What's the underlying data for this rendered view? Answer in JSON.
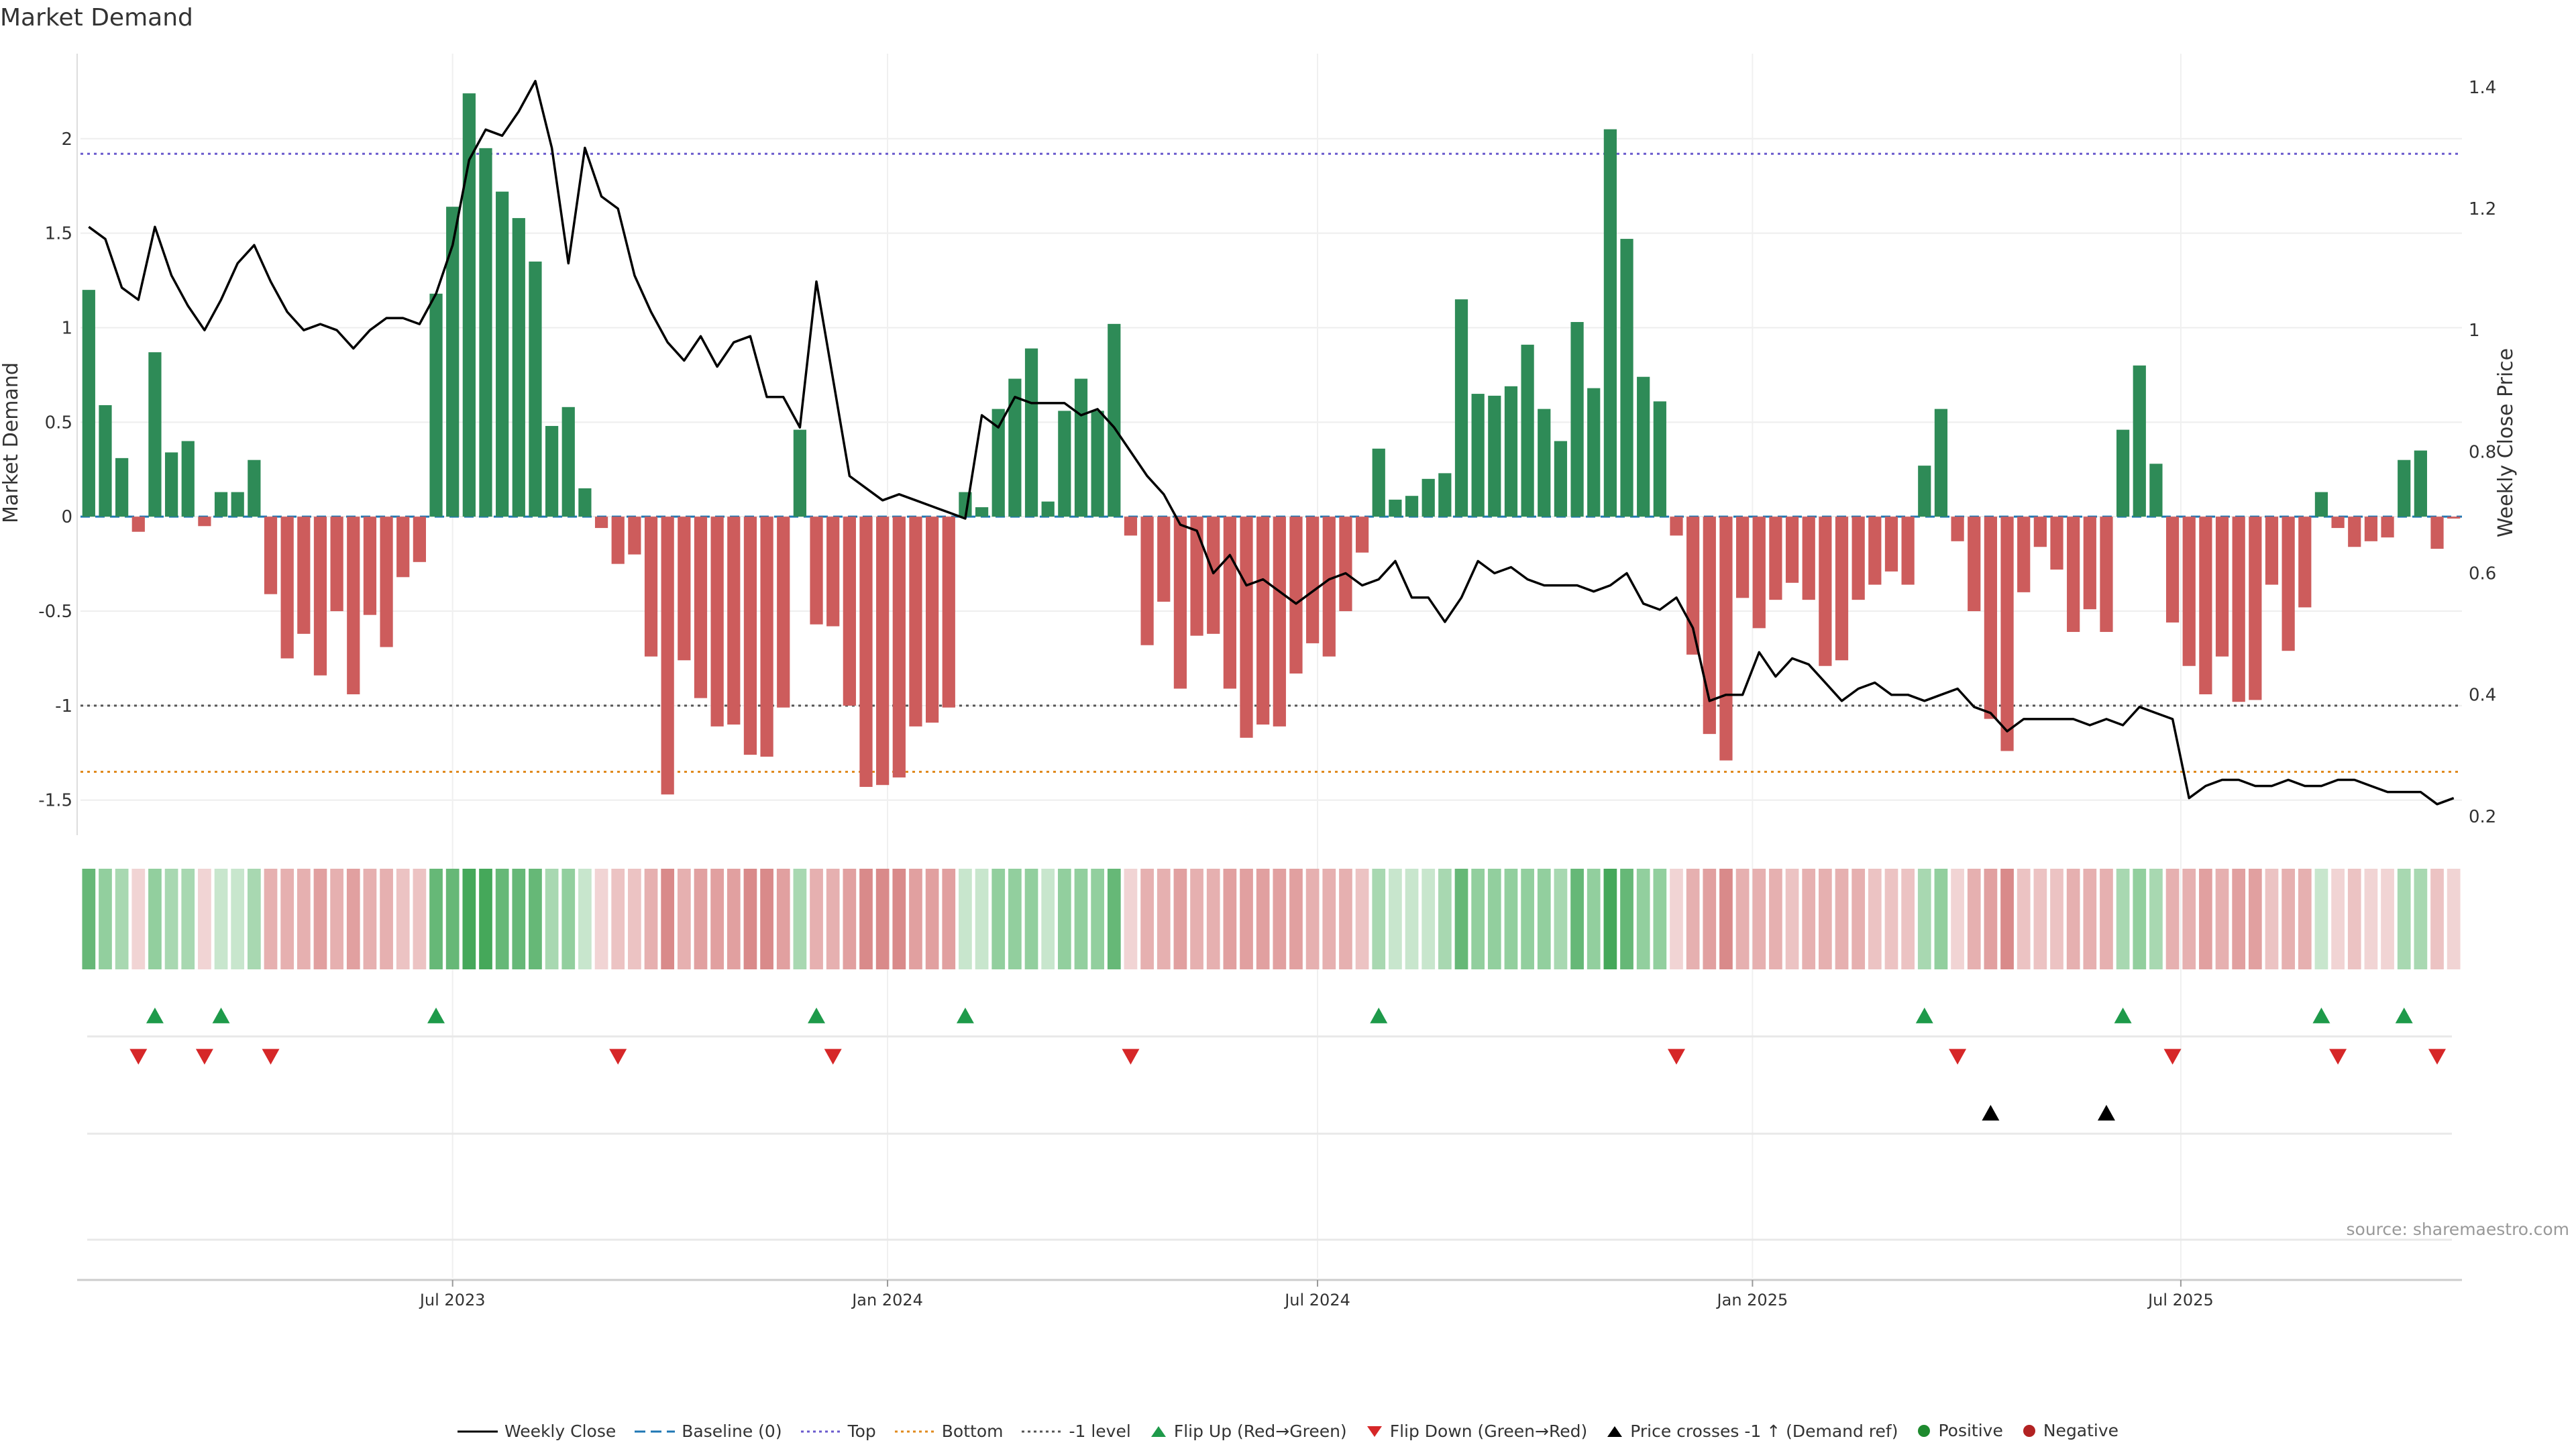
{
  "title": "Market Demand",
  "source": "source: sharemaestro.com",
  "colors": {
    "positive": "#2e8b57",
    "negative": "#cd5c5c",
    "price": "#000000",
    "top_line": "#6a5acd",
    "bottom_line": "#e08a1e",
    "minus1_line": "#555555",
    "baseline": "#1f77b4",
    "flip_up": "#1e9a4a",
    "flip_down": "#d62728"
  },
  "legend": [
    {
      "label": "Weekly Close",
      "symbol": "line-solid",
      "color": "#000000"
    },
    {
      "label": "Baseline (0)",
      "symbol": "line-dash",
      "color": "#1f77b4"
    },
    {
      "label": "Top",
      "symbol": "line-dot",
      "color": "#6a5acd"
    },
    {
      "label": "Bottom",
      "symbol": "line-dot",
      "color": "#e08a1e"
    },
    {
      "label": "-1 level",
      "symbol": "line-dot",
      "color": "#555555"
    },
    {
      "label": "Flip Up (Red→Green)",
      "symbol": "triangle-up",
      "color": "#1e9a4a"
    },
    {
      "label": "Flip Down (Green→Red)",
      "symbol": "triangle-down",
      "color": "#d62728"
    },
    {
      "label": "Price crosses -1 ↑ (Demand ref)",
      "symbol": "triangle-up",
      "color": "#000000"
    },
    {
      "label": "Positive",
      "symbol": "circle",
      "color": "#1e8a2e"
    },
    {
      "label": "Negative",
      "symbol": "circle",
      "color": "#b22222"
    }
  ],
  "chart_data": {
    "type": "bar",
    "title": "Market Demand",
    "ylabel": "Market Demand",
    "y2label": "Weekly Close Price",
    "ylim": [
      -1.65,
      2.45
    ],
    "y2lim": [
      0.18,
      1.455
    ],
    "yticks": [
      "2",
      "1.5",
      "1",
      "0.5",
      "0",
      "-0.5",
      "-1",
      "-1.5"
    ],
    "ytick_values": [
      2,
      1.5,
      1,
      0.5,
      0,
      -0.5,
      -1,
      -1.5
    ],
    "y2ticks": [
      "1.4",
      "1.2",
      "1",
      "0.8",
      "0.6",
      "0.4",
      "0.2"
    ],
    "y2tick_values": [
      1.4,
      1.2,
      1.0,
      0.8,
      0.6,
      0.4,
      0.2
    ],
    "xticks": [
      "Jul 2023",
      "Jan 2024",
      "Jul 2024",
      "Jan 2025",
      "Jul 2025"
    ],
    "xtick_weeks": [
      22.5,
      48.8,
      74.8,
      101.1,
      127
    ],
    "levels": {
      "top": 1.92,
      "bottom": -1.35,
      "minus1": -1.0,
      "baseline": 0
    },
    "grid": true,
    "legend_position": "bottom",
    "series": [
      {
        "name": "Market Demand",
        "type": "bar",
        "values": [
          1.2,
          0.59,
          0.31,
          -0.08,
          0.87,
          0.34,
          0.4,
          -0.05,
          0.13,
          0.13,
          0.3,
          -0.41,
          -0.75,
          -0.62,
          -0.84,
          -0.5,
          -0.94,
          -0.52,
          -0.69,
          -0.32,
          -0.24,
          1.18,
          1.64,
          2.24,
          1.95,
          1.72,
          1.58,
          1.35,
          0.48,
          0.58,
          0.15,
          -0.06,
          -0.25,
          -0.2,
          -0.74,
          -1.47,
          -0.76,
          -0.96,
          -1.11,
          -1.1,
          -1.26,
          -1.27,
          -1.01,
          0.46,
          -0.57,
          -0.58,
          -1.0,
          -1.43,
          -1.42,
          -1.38,
          -1.11,
          -1.09,
          -1.01,
          0.13,
          0.05,
          0.57,
          0.73,
          0.89,
          0.08,
          0.56,
          0.73,
          0.56,
          1.02,
          -0.1,
          -0.68,
          -0.45,
          -0.91,
          -0.63,
          -0.62,
          -0.91,
          -1.17,
          -1.1,
          -1.11,
          -0.83,
          -0.67,
          -0.74,
          -0.5,
          -0.19,
          0.36,
          0.09,
          0.11,
          0.2,
          0.23,
          1.15,
          0.65,
          0.64,
          0.69,
          0.91,
          0.57,
          0.4,
          1.03,
          0.68,
          2.05,
          1.47,
          0.74,
          0.61,
          -0.1,
          -0.73,
          -1.15,
          -1.29,
          -0.43,
          -0.59,
          -0.44,
          -0.35,
          -0.44,
          -0.79,
          -0.76,
          -0.44,
          -0.36,
          -0.29,
          -0.36,
          0.27,
          0.57,
          -0.13,
          -0.5,
          -1.07,
          -1.24,
          -0.4,
          -0.16,
          -0.28,
          -0.61,
          -0.49,
          -0.61,
          0.46,
          0.8,
          0.28,
          -0.56,
          -0.79,
          -0.94,
          -0.74,
          -0.98,
          -0.97,
          -0.36,
          -0.71,
          -0.48,
          0.13,
          -0.06,
          -0.16,
          -0.13,
          -0.11,
          0.3,
          0.35,
          -0.17,
          -0.01
        ]
      },
      {
        "name": "Weekly Close",
        "type": "line",
        "values": [
          1.17,
          1.15,
          1.07,
          1.05,
          1.17,
          1.09,
          1.04,
          1.0,
          1.05,
          1.11,
          1.14,
          1.08,
          1.03,
          1.0,
          1.01,
          1.0,
          0.97,
          1.0,
          1.02,
          1.02,
          1.01,
          1.06,
          1.14,
          1.28,
          1.33,
          1.32,
          1.36,
          1.41,
          1.3,
          1.11,
          1.3,
          1.22,
          1.2,
          1.09,
          1.03,
          0.98,
          0.95,
          0.99,
          0.94,
          0.98,
          0.99,
          0.89,
          0.89,
          0.84,
          1.08,
          0.92,
          0.76,
          0.74,
          0.72,
          0.73,
          0.72,
          0.71,
          0.7,
          0.69,
          0.86,
          0.84,
          0.89,
          0.88,
          0.88,
          0.88,
          0.86,
          0.87,
          0.84,
          0.8,
          0.76,
          0.73,
          0.68,
          0.67,
          0.6,
          0.63,
          0.58,
          0.59,
          0.57,
          0.55,
          0.57,
          0.59,
          0.6,
          0.58,
          0.59,
          0.62,
          0.56,
          0.56,
          0.52,
          0.56,
          0.62,
          0.6,
          0.61,
          0.59,
          0.58,
          0.58,
          0.58,
          0.57,
          0.58,
          0.6,
          0.55,
          0.54,
          0.56,
          0.51,
          0.39,
          0.4,
          0.4,
          0.47,
          0.43,
          0.46,
          0.45,
          0.42,
          0.39,
          0.41,
          0.42,
          0.4,
          0.4,
          0.39,
          0.4,
          0.41,
          0.38,
          0.37,
          0.34,
          0.36,
          0.36,
          0.36,
          0.36,
          0.35,
          0.36,
          0.35,
          0.38,
          0.37,
          0.36,
          0.23,
          0.25,
          0.26,
          0.26,
          0.25,
          0.25,
          0.26,
          0.25,
          0.25,
          0.26,
          0.26,
          0.25,
          0.24,
          0.24,
          0.24,
          0.22,
          0.23
        ]
      }
    ],
    "flip_up_weeks": [
      4,
      8,
      21,
      44,
      53,
      78,
      111,
      123,
      135,
      140
    ],
    "flip_down_weeks": [
      3,
      7,
      11,
      32,
      45,
      63,
      96,
      113,
      126,
      136,
      142
    ],
    "price_cross_weeks": [
      115,
      122
    ]
  }
}
